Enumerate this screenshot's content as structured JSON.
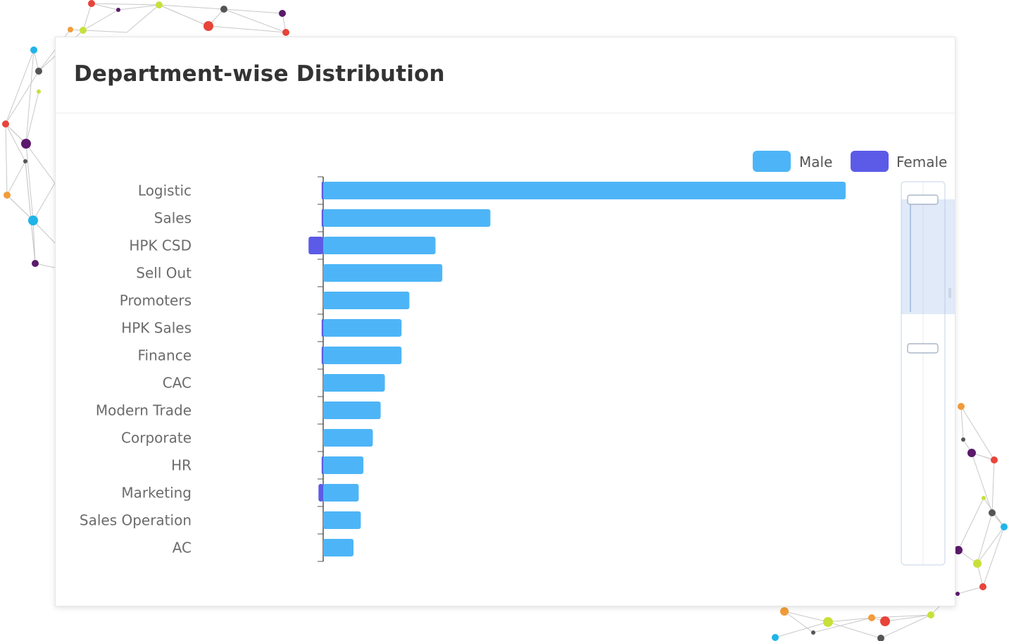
{
  "card": {
    "title": "Department-wise Distribution"
  },
  "chart_data": {
    "type": "bar",
    "orientation": "horizontal",
    "stacked": "diverging",
    "categories": [
      "Logistic",
      "Sales",
      "HPK CSD",
      "Sell Out",
      "Promoters",
      "HPK Sales",
      "Finance",
      "CAC",
      "Modern Trade",
      "Corporate",
      "HR",
      "Marketing",
      "Sales Operation",
      "AC"
    ],
    "series": [
      {
        "name": "Male",
        "color": "#4db5f7",
        "values": [
          1000,
          320,
          215,
          228,
          165,
          150,
          150,
          118,
          110,
          95,
          77,
          68,
          72,
          58
        ]
      },
      {
        "name": "Female",
        "color": "#5b5be8",
        "values": [
          3,
          3,
          28,
          0,
          0,
          3,
          3,
          0,
          0,
          0,
          3,
          9,
          0,
          0
        ]
      }
    ],
    "legend_position": "top-right",
    "grid": false,
    "data_zoom": "vertical-slider-right"
  }
}
